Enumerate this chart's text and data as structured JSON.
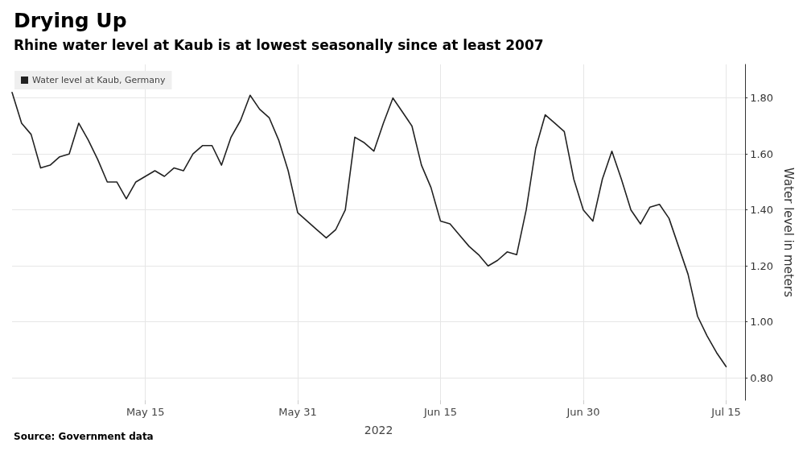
{
  "chart_data": {
    "type": "line",
    "title": "Drying Up",
    "subtitle": "Rhine water level at Kaub is at lowest seasonally since at least 2007",
    "xlabel": "2022",
    "ylabel": "Water level in meters",
    "annotations": [
      "Source: Government data"
    ],
    "x": [
      "2022-05-01",
      "2022-05-02",
      "2022-05-03",
      "2022-05-04",
      "2022-05-05",
      "2022-05-06",
      "2022-05-07",
      "2022-05-08",
      "2022-05-09",
      "2022-05-10",
      "2022-05-11",
      "2022-05-12",
      "2022-05-13",
      "2022-05-14",
      "2022-05-15",
      "2022-05-16",
      "2022-05-17",
      "2022-05-18",
      "2022-05-19",
      "2022-05-20",
      "2022-05-21",
      "2022-05-22",
      "2022-05-23",
      "2022-05-24",
      "2022-05-25",
      "2022-05-26",
      "2022-05-27",
      "2022-05-28",
      "2022-05-29",
      "2022-05-30",
      "2022-05-31",
      "2022-06-01",
      "2022-06-02",
      "2022-06-03",
      "2022-06-04",
      "2022-06-05",
      "2022-06-06",
      "2022-06-07",
      "2022-06-08",
      "2022-06-09",
      "2022-06-10",
      "2022-06-11",
      "2022-06-12",
      "2022-06-13",
      "2022-06-14",
      "2022-06-15",
      "2022-06-16",
      "2022-06-17",
      "2022-06-18",
      "2022-06-19",
      "2022-06-20",
      "2022-06-21",
      "2022-06-22",
      "2022-06-23",
      "2022-06-24",
      "2022-06-25",
      "2022-06-26",
      "2022-06-27",
      "2022-06-28",
      "2022-06-29",
      "2022-06-30",
      "2022-07-01",
      "2022-07-02",
      "2022-07-03",
      "2022-07-04",
      "2022-07-05",
      "2022-07-06",
      "2022-07-07",
      "2022-07-08",
      "2022-07-09",
      "2022-07-10",
      "2022-07-11",
      "2022-07-12",
      "2022-07-13",
      "2022-07-14",
      "2022-07-15"
    ],
    "series": [
      {
        "name": "Water level at Kaub, Germany",
        "color": "#222222",
        "values": [
          1.82,
          1.71,
          1.67,
          1.55,
          1.56,
          1.59,
          1.6,
          1.71,
          1.65,
          1.58,
          1.5,
          1.5,
          1.44,
          1.5,
          1.52,
          1.54,
          1.52,
          1.55,
          1.54,
          1.6,
          1.63,
          1.63,
          1.56,
          1.66,
          1.72,
          1.81,
          1.76,
          1.73,
          1.65,
          1.54,
          1.39,
          1.36,
          1.33,
          1.3,
          1.33,
          1.4,
          1.66,
          1.64,
          1.61,
          1.71,
          1.8,
          1.75,
          1.7,
          1.56,
          1.48,
          1.36,
          1.35,
          1.31,
          1.27,
          1.24,
          1.2,
          1.22,
          1.25,
          1.24,
          1.4,
          1.62,
          1.74,
          1.71,
          1.68,
          1.51,
          1.4,
          1.36,
          1.51,
          1.61,
          1.51,
          1.4,
          1.35,
          1.41,
          1.42,
          1.37,
          1.27,
          1.17,
          1.02,
          0.95,
          0.89,
          0.84
        ]
      }
    ],
    "xlim": [
      "2022-05-01",
      "2022-07-17"
    ],
    "xticks": [
      {
        "value": "2022-05-15",
        "label": "May 15"
      },
      {
        "value": "2022-05-31",
        "label": "May 31"
      },
      {
        "value": "2022-06-15",
        "label": "Jun 15"
      },
      {
        "value": "2022-06-30",
        "label": "Jun 30"
      },
      {
        "value": "2022-07-15",
        "label": "Jul 15"
      }
    ],
    "ylim": [
      0.72,
      1.92
    ],
    "yticks": [
      {
        "value": 0.8,
        "label": "0.80"
      },
      {
        "value": 1.0,
        "label": "1.00"
      },
      {
        "value": 1.2,
        "label": "1.20"
      },
      {
        "value": 1.4,
        "label": "1.40"
      },
      {
        "value": 1.6,
        "label": "1.60"
      },
      {
        "value": 1.8,
        "label": "1.80"
      }
    ],
    "grid": true,
    "legend": "top left",
    "marker": "none",
    "line_style": "solid"
  }
}
